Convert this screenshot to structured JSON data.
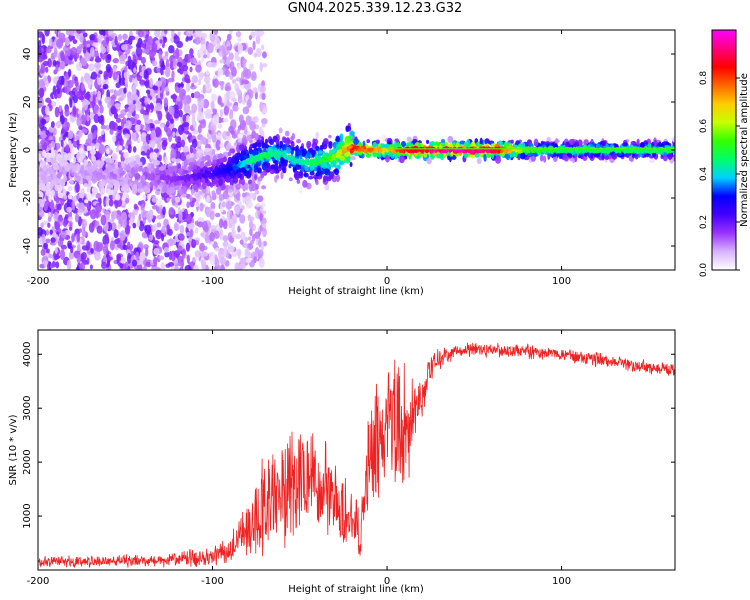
{
  "title": "GN04.2025.339.12.23.G32",
  "chart_data": [
    {
      "type": "heatmap",
      "xlabel": "Height of straight line (km)",
      "ylabel": "Frequency (Hz)",
      "xlim": [
        -200,
        165
      ],
      "ylim": [
        -50,
        50
      ],
      "x_ticks": [
        -200,
        -100,
        0,
        100
      ],
      "y_ticks": [
        -40,
        -20,
        0,
        20,
        40
      ],
      "colorbar": {
        "label": "Normalized spectral amplitude",
        "range": [
          0,
          1
        ],
        "ticks": [
          "0.0",
          "0.2",
          "0.4",
          "0.6",
          "0.8"
        ],
        "colormap": [
          "#ffffff",
          "#d9b3ff",
          "#9933ff",
          "#4400ff",
          "#0000ff",
          "#00d0ff",
          "#00ff66",
          "#33ff00",
          "#c8ff00",
          "#ffcc00",
          "#ff6600",
          "#ff0000",
          "#ff0080",
          "#ff00ff"
        ]
      },
      "ridge": {
        "x": [
          -200,
          -150,
          -120,
          -100,
          -90,
          -80,
          -70,
          -60,
          -50,
          -40,
          -30,
          -25,
          -20,
          -10,
          0,
          10,
          20,
          40,
          60,
          80,
          100,
          120,
          140,
          165
        ],
        "frequency": [
          -10,
          -10,
          -12,
          -10,
          -8,
          -5,
          -2,
          -2,
          -5,
          -5,
          -3,
          0,
          1,
          0,
          0,
          0,
          0,
          0,
          0,
          0,
          0,
          0,
          0,
          0
        ],
        "amplitude": [
          0.1,
          0.12,
          0.18,
          0.25,
          0.32,
          0.45,
          0.5,
          0.45,
          0.45,
          0.5,
          0.6,
          0.75,
          0.85,
          0.8,
          0.7,
          0.9,
          0.95,
          1.0,
          0.95,
          0.55,
          0.5,
          0.5,
          0.5,
          0.5
        ]
      }
    },
    {
      "type": "line",
      "xlabel": "Height of straight line (km)",
      "ylabel": "SNR (10 * v/v)",
      "xlim": [
        -200,
        165
      ],
      "ylim": [
        0,
        4450
      ],
      "x_ticks": [
        -200,
        -100,
        0,
        100
      ],
      "y_ticks": [
        1000,
        2000,
        3000,
        4000
      ],
      "color": "#ee2222",
      "series": [
        {
          "x": [
            -200,
            -180,
            -160,
            -140,
            -120,
            -100,
            -90,
            -80,
            -70,
            -60,
            -50,
            -40,
            -30,
            -20,
            -15,
            -10,
            -5,
            0,
            5,
            10,
            15,
            20,
            25,
            30,
            40,
            50,
            60,
            80,
            100,
            120,
            140,
            165
          ],
          "y": [
            150,
            160,
            170,
            180,
            200,
            250,
            350,
            800,
            1200,
            1600,
            1800,
            1600,
            1200,
            900,
            600,
            2000,
            2400,
            2600,
            2800,
            2700,
            3000,
            3200,
            3700,
            3950,
            4050,
            4100,
            4080,
            4050,
            4000,
            3900,
            3800,
            3700
          ],
          "spread": [
            120,
            130,
            130,
            140,
            160,
            200,
            300,
            700,
            1100,
            1300,
            1300,
            1200,
            1000,
            700,
            500,
            1200,
            1400,
            1600,
            1800,
            1600,
            800,
            400,
            300,
            250,
            150,
            150,
            150,
            150,
            150,
            150,
            150,
            150
          ]
        }
      ]
    }
  ]
}
